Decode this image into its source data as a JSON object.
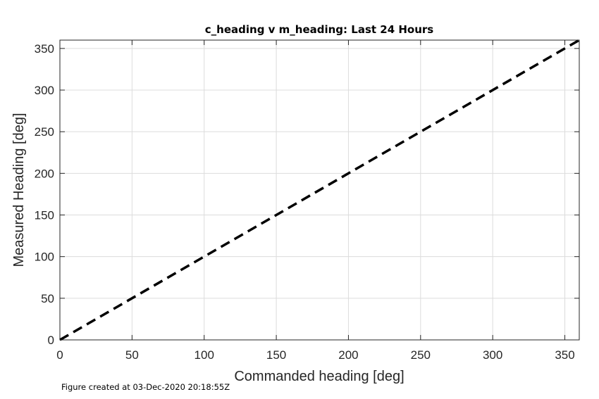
{
  "chart_data": {
    "type": "line",
    "title": "c_heading v m_heading: Last 24 Hours",
    "xlabel": "Commanded heading [deg]",
    "ylabel": "Measured Heading [deg]",
    "xlim": [
      0,
      360
    ],
    "ylim": [
      0,
      360
    ],
    "xticks": [
      0,
      50,
      100,
      150,
      200,
      250,
      300,
      350
    ],
    "yticks": [
      0,
      50,
      100,
      150,
      200,
      250,
      300,
      350
    ],
    "grid": true,
    "series": [
      {
        "x": [
          0,
          360
        ],
        "y": [
          0,
          360
        ],
        "style": "dashed",
        "color": "#000000"
      }
    ]
  },
  "footnote": "Figure created at 03-Dec-2020 20:18:55Z"
}
